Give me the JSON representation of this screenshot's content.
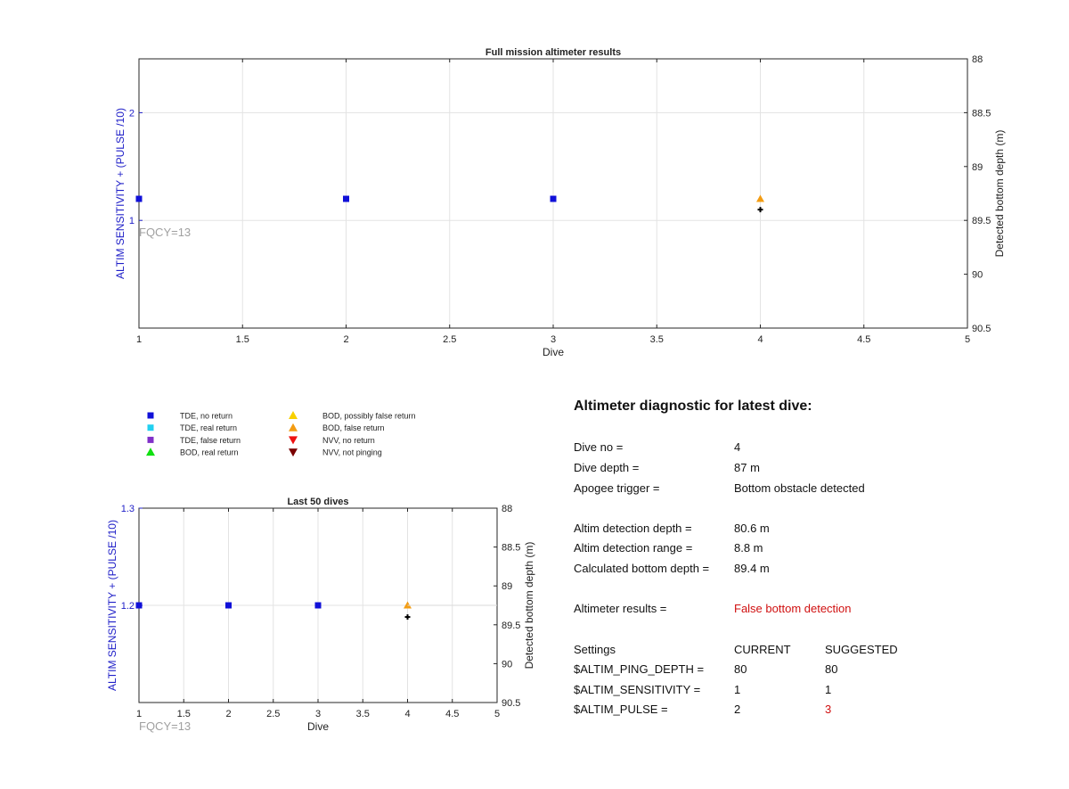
{
  "chart_data": [
    {
      "type": "scatter",
      "title": "Full mission altimeter results",
      "xlabel": "Dive",
      "ylabel_left": "ALTIM SENSITIVITY + (PULSE /10)",
      "ylabel_right": "Detected bottom depth (m)",
      "xlim": [
        1,
        5
      ],
      "ylim_left": [
        0,
        2.5
      ],
      "ylim_right": [
        88,
        90.5
      ],
      "right_axis_reversed": true,
      "x_ticks": [
        "1",
        "1.5",
        "2",
        "2.5",
        "3",
        "3.5",
        "4",
        "4.5",
        "5"
      ],
      "y_left_ticks": [
        "1",
        "2"
      ],
      "y_right_ticks": [
        "88",
        "88.5",
        "89",
        "89.5",
        "90",
        "90.5"
      ],
      "grid": true,
      "annotation": "FQCY=13",
      "series": [
        {
          "name": "TDE, no return",
          "x": [
            1,
            2,
            3
          ],
          "y": [
            1.2,
            1.2,
            1.2
          ]
        },
        {
          "name": "BOD, false return",
          "x": [
            4
          ],
          "y": [
            1.2
          ]
        },
        {
          "name": "Detected bottom depth",
          "x": [
            4
          ],
          "y": [
            89.4
          ],
          "axis": "right"
        }
      ]
    },
    {
      "type": "scatter",
      "title": "Last 50 dives",
      "xlabel": "Dive",
      "ylabel_left": "ALTIM SENSITIVITY + (PULSE /10)",
      "ylabel_right": "Detected bottom depth (m)",
      "xlim": [
        1,
        5
      ],
      "ylim_left": [
        1.1,
        1.3
      ],
      "ylim_right": [
        88,
        90.5
      ],
      "right_axis_reversed": true,
      "x_ticks": [
        "1",
        "1.5",
        "2",
        "2.5",
        "3",
        "3.5",
        "4",
        "4.5",
        "5"
      ],
      "y_left_ticks": [
        "1.2",
        "1.3"
      ],
      "y_right_ticks": [
        "88",
        "88.5",
        "89",
        "89.5",
        "90",
        "90.5"
      ],
      "grid": true,
      "annotation": "FQCY=13",
      "series": [
        {
          "name": "TDE, no return",
          "x": [
            1,
            2,
            3
          ],
          "y": [
            1.2,
            1.2,
            1.2
          ]
        },
        {
          "name": "BOD, false return",
          "x": [
            4
          ],
          "y": [
            1.2
          ]
        },
        {
          "name": "Detected bottom depth",
          "x": [
            4
          ],
          "y": [
            89.4
          ],
          "axis": "right"
        }
      ]
    }
  ],
  "legend": [
    {
      "label": "TDE, no return",
      "marker": "square",
      "color": "#1010d8"
    },
    {
      "label": "TDE, real return",
      "marker": "square",
      "color": "#22d0f0"
    },
    {
      "label": "TDE, false return",
      "marker": "square",
      "color": "#8030c8"
    },
    {
      "label": "BOD, real return",
      "marker": "triangle-up",
      "color": "#10e010"
    },
    {
      "label": "BOD, possibly false return",
      "marker": "triangle-up",
      "color": "#f8d000"
    },
    {
      "label": "BOD, false return",
      "marker": "triangle-up",
      "color": "#f39c12"
    },
    {
      "label": "NVV, no return",
      "marker": "triangle-down",
      "color": "#ee1111"
    },
    {
      "label": "NVV, not pinging",
      "marker": "triangle-down",
      "color": "#7a0000"
    }
  ],
  "colors": {
    "left_axis": "#2020c8",
    "annotation": "#a0a0a0",
    "alert": "#d01010",
    "depth_marker": "#000000"
  },
  "diagnostic": {
    "title": "Altimeter diagnostic for latest dive:",
    "dive_no_label": "Dive no =",
    "dive_no": "4",
    "dive_depth_label": "Dive depth =",
    "dive_depth": "87 m",
    "apogee_label": "Apogee trigger =",
    "apogee": "Bottom obstacle detected",
    "det_depth_label": "Altim detection depth =",
    "det_depth": "80.6 m",
    "det_range_label": "Altim detection range =",
    "det_range": "8.8 m",
    "calc_depth_label": "Calculated bottom depth =",
    "calc_depth": "89.4 m",
    "results_label": "Altimeter results =",
    "results": "False bottom detection",
    "settings_label": "Settings",
    "current_label": "CURRENT",
    "suggested_label": "SUGGESTED",
    "settings": [
      {
        "name": "$ALTIM_PING_DEPTH =",
        "current": "80",
        "suggested": "80",
        "changed": false
      },
      {
        "name": "$ALTIM_SENSITIVITY =",
        "current": "1",
        "suggested": "1",
        "changed": false
      },
      {
        "name": "$ALTIM_PULSE =",
        "current": "2",
        "suggested": "3",
        "changed": true
      }
    ]
  }
}
